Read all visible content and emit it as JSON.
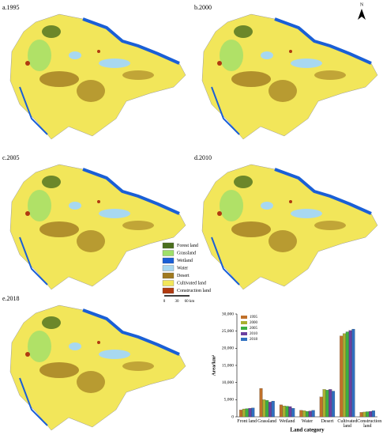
{
  "maps": {
    "panels": [
      "a.1995",
      "b.2000",
      "c.2005",
      "d.2010",
      "e.2018"
    ],
    "north": "N",
    "legend": [
      {
        "name": "Forest land",
        "color": "#4a6f1e"
      },
      {
        "name": "Grassland",
        "color": "#9fe06a"
      },
      {
        "name": "Wetland",
        "color": "#1a5fd6"
      },
      {
        "name": "Water",
        "color": "#a8d8f0"
      },
      {
        "name": "Desert",
        "color": "#a07a20"
      },
      {
        "name": "Cultivated land",
        "color": "#f2e65a"
      },
      {
        "name": "Construction land",
        "color": "#b03a10"
      }
    ],
    "scale": [
      "0",
      "30",
      "60 km"
    ]
  },
  "chart_data": {
    "type": "bar",
    "x_label": "Land category",
    "y_label": "Area/km²",
    "categories": [
      "Front land",
      "Grassland",
      "Wetland",
      "Water",
      "Desert",
      "Cultivated land",
      "Construction land"
    ],
    "series": [
      {
        "name": "1995",
        "color": "#c0702a",
        "values": [
          2000,
          8300,
          3500,
          1900,
          5800,
          23600,
          1300
        ]
      },
      {
        "name": "2000",
        "color": "#a8b030",
        "values": [
          2300,
          5000,
          3200,
          1800,
          8000,
          24300,
          1400
        ]
      },
      {
        "name": "2005",
        "color": "#3cb043",
        "values": [
          2400,
          4800,
          3100,
          1600,
          7800,
          24800,
          1500
        ]
      },
      {
        "name": "2010",
        "color": "#6a3fa0",
        "values": [
          2500,
          4300,
          3000,
          1700,
          8000,
          25200,
          1600
        ]
      },
      {
        "name": "2018",
        "color": "#2f6fc0",
        "values": [
          2600,
          4600,
          2500,
          1900,
          7500,
          25600,
          1800
        ]
      }
    ],
    "ylim": [
      0,
      30000
    ],
    "yticks": [
      0,
      {
        "value": 5000,
        "label": "5,000"
      },
      {
        "value": 10000,
        "label": "10,000"
      },
      {
        "value": 15000,
        "label": "15,000"
      },
      {
        "value": 20000,
        "label": "20,000"
      },
      {
        "value": 25000,
        "label": "25,000"
      },
      {
        "value": 30000,
        "label": "30,000"
      }
    ]
  }
}
